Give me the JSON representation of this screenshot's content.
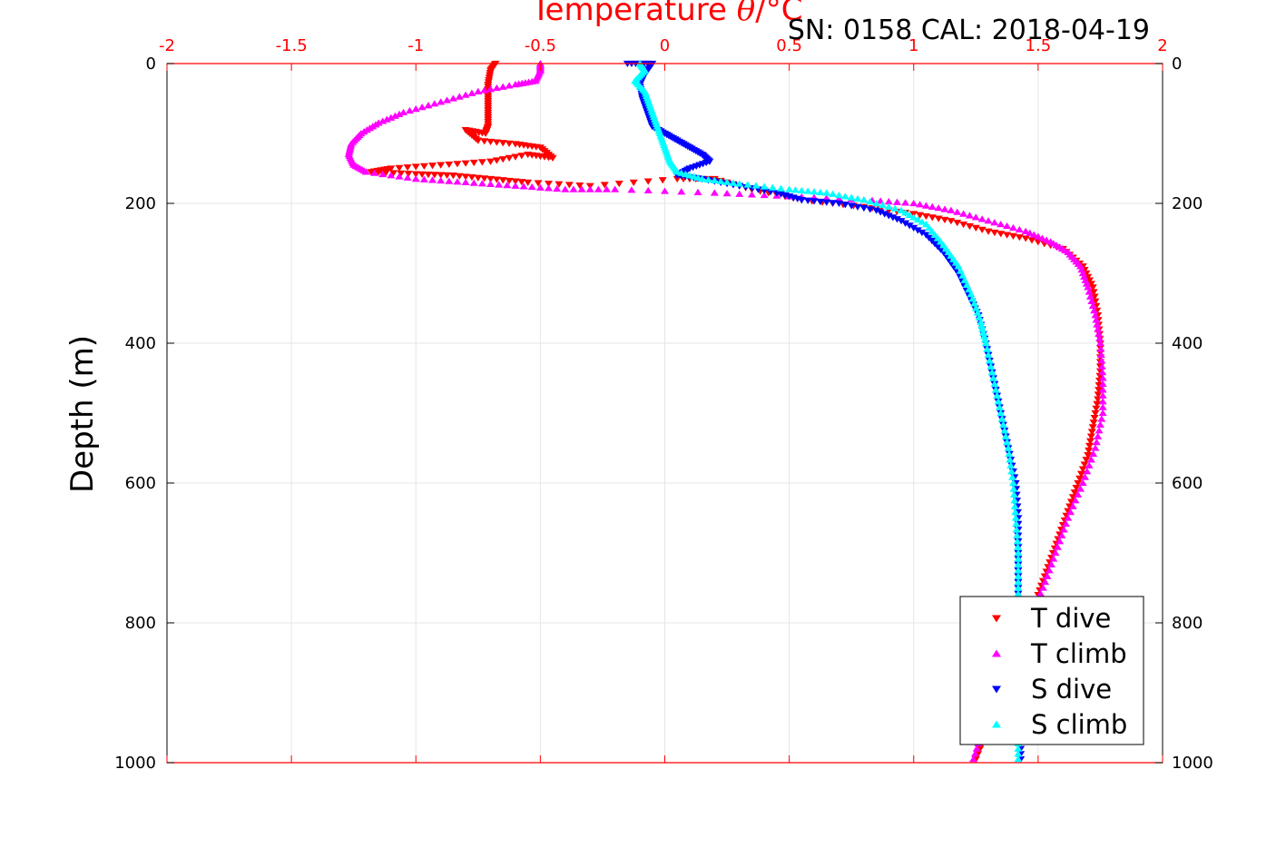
{
  "chart_data": {
    "type": "scatter",
    "title": {
      "prefix": "Temperature ",
      "symbol": "θ",
      "suffix": "/°C",
      "color": "#ff0000"
    },
    "subtitle": "SN: 0158  CAL: 2018-04-19",
    "ylabel": "Depth (m)",
    "xlim": [
      -2,
      2
    ],
    "ylim": [
      0,
      1000
    ],
    "y_reversed": true,
    "x_axis_position": "top",
    "x_ticks": [
      -2,
      -1.5,
      -1,
      -0.5,
      0,
      0.5,
      1,
      1.5,
      2
    ],
    "x_tick_labels": [
      "-2",
      "-1.5",
      "-1",
      "-0.5",
      "0",
      "0.5",
      "1",
      "1.5",
      "2"
    ],
    "y_ticks": [
      0,
      200,
      400,
      600,
      800,
      1000
    ],
    "y_tick_labels": [
      "0",
      "200",
      "400",
      "600",
      "800",
      "1000"
    ],
    "grid": true,
    "legend_position": "bottom-right",
    "series": [
      {
        "name": "T dive",
        "color": "#ff0000",
        "marker": "triangle-down",
        "points": [
          [
            -0.68,
            0
          ],
          [
            -0.7,
            10
          ],
          [
            -0.71,
            30
          ],
          [
            -0.71,
            50
          ],
          [
            -0.71,
            70
          ],
          [
            -0.71,
            90
          ],
          [
            -0.72,
            100
          ],
          [
            -0.8,
            95
          ],
          [
            -0.75,
            110
          ],
          [
            -0.6,
            115
          ],
          [
            -0.5,
            120
          ],
          [
            -0.45,
            135
          ],
          [
            -0.55,
            130
          ],
          [
            -0.7,
            140
          ],
          [
            -0.9,
            145
          ],
          [
            -1.1,
            150
          ],
          [
            -1.18,
            155
          ],
          [
            -1.0,
            158
          ],
          [
            -0.85,
            160
          ],
          [
            -0.7,
            165
          ],
          [
            -0.55,
            170
          ],
          [
            -0.3,
            175
          ],
          [
            0.05,
            165
          ],
          [
            0.2,
            165
          ],
          [
            0.35,
            180
          ],
          [
            0.55,
            195
          ],
          [
            0.8,
            205
          ],
          [
            1.0,
            215
          ],
          [
            1.15,
            225
          ],
          [
            1.3,
            240
          ],
          [
            1.45,
            250
          ],
          [
            1.6,
            265
          ],
          [
            1.68,
            290
          ],
          [
            1.72,
            320
          ],
          [
            1.74,
            360
          ],
          [
            1.75,
            400
          ],
          [
            1.75,
            440
          ],
          [
            1.74,
            480
          ],
          [
            1.72,
            520
          ],
          [
            1.7,
            560
          ],
          [
            1.66,
            600
          ],
          [
            1.62,
            640
          ],
          [
            1.58,
            680
          ],
          [
            1.54,
            720
          ],
          [
            1.5,
            760
          ],
          [
            1.45,
            800
          ],
          [
            1.4,
            850
          ],
          [
            1.35,
            900
          ],
          [
            1.3,
            950
          ],
          [
            1.25,
            995
          ]
        ]
      },
      {
        "name": "T climb",
        "color": "#ff00ff",
        "marker": "triangle-up",
        "points": [
          [
            -0.5,
            0
          ],
          [
            -0.5,
            10
          ],
          [
            -0.52,
            25
          ],
          [
            -0.6,
            30
          ],
          [
            -0.75,
            40
          ],
          [
            -0.9,
            55
          ],
          [
            -1.05,
            70
          ],
          [
            -1.15,
            85
          ],
          [
            -1.22,
            100
          ],
          [
            -1.26,
            115
          ],
          [
            -1.27,
            130
          ],
          [
            -1.25,
            145
          ],
          [
            -1.2,
            155
          ],
          [
            -1.0,
            165
          ],
          [
            -0.8,
            170
          ],
          [
            -0.6,
            175
          ],
          [
            -0.4,
            180
          ],
          [
            -0.2,
            180
          ],
          [
            0.2,
            185
          ],
          [
            0.5,
            190
          ],
          [
            0.8,
            195
          ],
          [
            1.0,
            200
          ],
          [
            1.15,
            210
          ],
          [
            1.3,
            225
          ],
          [
            1.45,
            240
          ],
          [
            1.55,
            255
          ],
          [
            1.62,
            270
          ],
          [
            1.67,
            290
          ],
          [
            1.7,
            320
          ],
          [
            1.73,
            360
          ],
          [
            1.75,
            400
          ],
          [
            1.76,
            450
          ],
          [
            1.76,
            500
          ],
          [
            1.73,
            550
          ],
          [
            1.68,
            600
          ],
          [
            1.62,
            650
          ],
          [
            1.57,
            700
          ],
          [
            1.52,
            750
          ],
          [
            1.46,
            800
          ],
          [
            1.4,
            850
          ],
          [
            1.34,
            900
          ],
          [
            1.28,
            950
          ],
          [
            1.24,
            995
          ]
        ]
      },
      {
        "name": "S dive",
        "color": "#0000ff",
        "marker": "triangle-down",
        "points": [
          [
            -0.15,
            0
          ],
          [
            -0.05,
            0
          ],
          [
            -0.08,
            15
          ],
          [
            -0.1,
            30
          ],
          [
            -0.09,
            50
          ],
          [
            -0.07,
            70
          ],
          [
            -0.05,
            90
          ],
          [
            0.0,
            100
          ],
          [
            0.05,
            110
          ],
          [
            0.1,
            120
          ],
          [
            0.15,
            130
          ],
          [
            0.18,
            140
          ],
          [
            0.1,
            150
          ],
          [
            0.05,
            160
          ],
          [
            0.15,
            165
          ],
          [
            0.3,
            175
          ],
          [
            0.45,
            185
          ],
          [
            0.55,
            195
          ],
          [
            0.7,
            200
          ],
          [
            0.85,
            210
          ],
          [
            0.95,
            225
          ],
          [
            1.05,
            245
          ],
          [
            1.12,
            270
          ],
          [
            1.18,
            300
          ],
          [
            1.22,
            330
          ],
          [
            1.26,
            360
          ],
          [
            1.29,
            400
          ],
          [
            1.32,
            450
          ],
          [
            1.35,
            500
          ],
          [
            1.38,
            550
          ],
          [
            1.41,
            600
          ],
          [
            1.42,
            650
          ],
          [
            1.42,
            700
          ],
          [
            1.42,
            750
          ],
          [
            1.42,
            800
          ],
          [
            1.42,
            850
          ],
          [
            1.43,
            900
          ],
          [
            1.43,
            950
          ],
          [
            1.43,
            995
          ]
        ]
      },
      {
        "name": "S climb",
        "color": "#00ffff",
        "marker": "triangle-up",
        "points": [
          [
            -0.1,
            0
          ],
          [
            -0.08,
            10
          ],
          [
            -0.12,
            25
          ],
          [
            -0.08,
            40
          ],
          [
            -0.06,
            60
          ],
          [
            -0.04,
            80
          ],
          [
            -0.02,
            100
          ],
          [
            0.0,
            120
          ],
          [
            0.02,
            140
          ],
          [
            0.05,
            155
          ],
          [
            0.15,
            165
          ],
          [
            0.3,
            172
          ],
          [
            0.5,
            180
          ],
          [
            0.65,
            185
          ],
          [
            0.8,
            195
          ],
          [
            0.95,
            210
          ],
          [
            1.05,
            230
          ],
          [
            1.12,
            260
          ],
          [
            1.18,
            290
          ],
          [
            1.23,
            330
          ],
          [
            1.27,
            370
          ],
          [
            1.29,
            400
          ],
          [
            1.32,
            450
          ],
          [
            1.35,
            500
          ],
          [
            1.38,
            550
          ],
          [
            1.4,
            600
          ],
          [
            1.41,
            650
          ],
          [
            1.42,
            700
          ],
          [
            1.42,
            750
          ],
          [
            1.42,
            800
          ],
          [
            1.42,
            850
          ],
          [
            1.42,
            900
          ],
          [
            1.42,
            950
          ],
          [
            1.42,
            995
          ]
        ]
      }
    ]
  }
}
